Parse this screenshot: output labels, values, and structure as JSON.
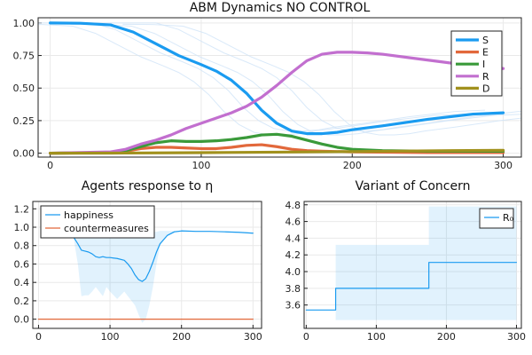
{
  "chart_data": [
    {
      "type": "line",
      "title": "ABM Dynamics NO CONTROL",
      "xlim": [
        -8,
        312
      ],
      "ylim": [
        -0.03,
        1.04
      ],
      "xticks": [
        "0",
        "100",
        "200",
        "300"
      ],
      "yticks": [
        "0.00",
        "0.25",
        "0.50",
        "0.75",
        "1.00"
      ],
      "grid": true,
      "legend": "top-right",
      "series": [
        {
          "name": "S",
          "color": "#1a9bf0",
          "x": [
            0,
            20,
            40,
            55,
            70,
            85,
            100,
            110,
            120,
            130,
            140,
            150,
            160,
            170,
            180,
            190,
            200,
            220,
            250,
            280,
            300
          ],
          "y": [
            1.0,
            0.998,
            0.985,
            0.93,
            0.84,
            0.75,
            0.68,
            0.63,
            0.56,
            0.46,
            0.33,
            0.23,
            0.17,
            0.15,
            0.15,
            0.16,
            0.18,
            0.21,
            0.26,
            0.3,
            0.31
          ]
        },
        {
          "name": "E",
          "color": "#e2683b",
          "x": [
            0,
            40,
            50,
            60,
            70,
            80,
            90,
            100,
            110,
            120,
            130,
            140,
            150,
            160,
            170,
            180,
            200,
            250,
            300
          ],
          "y": [
            0.0,
            0.003,
            0.015,
            0.035,
            0.045,
            0.045,
            0.04,
            0.035,
            0.035,
            0.045,
            0.06,
            0.065,
            0.05,
            0.03,
            0.02,
            0.015,
            0.01,
            0.005,
            0.005
          ]
        },
        {
          "name": "I",
          "color": "#3a9a3a",
          "x": [
            0,
            40,
            50,
            60,
            70,
            80,
            90,
            100,
            110,
            120,
            130,
            140,
            150,
            160,
            170,
            180,
            190,
            200,
            220,
            250,
            300
          ],
          "y": [
            0.0,
            0.005,
            0.02,
            0.05,
            0.08,
            0.095,
            0.09,
            0.09,
            0.095,
            0.105,
            0.12,
            0.14,
            0.145,
            0.13,
            0.1,
            0.07,
            0.045,
            0.03,
            0.02,
            0.015,
            0.015
          ]
        },
        {
          "name": "R",
          "color": "#c26fcf",
          "x": [
            0,
            40,
            50,
            60,
            70,
            80,
            90,
            100,
            110,
            120,
            130,
            140,
            150,
            160,
            170,
            180,
            190,
            200,
            210,
            220,
            240,
            260,
            280,
            300
          ],
          "y": [
            0.0,
            0.01,
            0.03,
            0.07,
            0.1,
            0.14,
            0.19,
            0.23,
            0.27,
            0.31,
            0.36,
            0.43,
            0.52,
            0.62,
            0.71,
            0.76,
            0.775,
            0.775,
            0.77,
            0.76,
            0.73,
            0.7,
            0.67,
            0.65
          ]
        },
        {
          "name": "D",
          "color": "#a1911d",
          "x": [
            0,
            50,
            100,
            150,
            200,
            250,
            300
          ],
          "y": [
            0.0,
            0.001,
            0.004,
            0.008,
            0.012,
            0.018,
            0.022
          ]
        }
      ]
    },
    {
      "type": "line",
      "title": "Agents response to η",
      "xlim": [
        -8,
        312
      ],
      "ylim": [
        -0.1,
        1.28
      ],
      "xticks": [
        "0",
        "100",
        "200",
        "300"
      ],
      "yticks": [
        "0.0",
        "0.2",
        "0.4",
        "0.6",
        "0.8",
        "1.0",
        "1.2"
      ],
      "grid": true,
      "legend": "top-left",
      "series": [
        {
          "name": "happiness",
          "color": "#1a9bf0",
          "x": [
            50,
            55,
            60,
            65,
            70,
            75,
            80,
            85,
            90,
            95,
            100,
            110,
            120,
            125,
            130,
            135,
            140,
            145,
            150,
            155,
            160,
            165,
            170,
            180,
            190,
            200,
            220,
            240,
            260,
            280,
            300
          ],
          "y": [
            0.88,
            0.82,
            0.75,
            0.74,
            0.73,
            0.71,
            0.68,
            0.67,
            0.68,
            0.67,
            0.67,
            0.66,
            0.64,
            0.6,
            0.55,
            0.48,
            0.43,
            0.41,
            0.44,
            0.52,
            0.62,
            0.73,
            0.82,
            0.91,
            0.95,
            0.96,
            0.955,
            0.955,
            0.95,
            0.945,
            0.935
          ],
          "band_upper": [
            0.92,
            0.95,
            0.96,
            0.96,
            0.96,
            0.96,
            0.96,
            0.96,
            0.96,
            0.96,
            0.96,
            0.96,
            0.96,
            0.96,
            0.96,
            0.95,
            0.95,
            0.95,
            0.95,
            0.95,
            0.95,
            0.95,
            0.96,
            0.96,
            0.96,
            0.96,
            0.96,
            0.955,
            0.955,
            0.95,
            0.94
          ],
          "band_lower": [
            0.84,
            0.6,
            0.25,
            0.26,
            0.26,
            0.3,
            0.35,
            0.3,
            0.25,
            0.35,
            0.3,
            0.22,
            0.3,
            0.25,
            0.2,
            0.15,
            0.05,
            -0.04,
            0.0,
            0.15,
            0.35,
            0.6,
            0.8,
            0.9,
            0.94,
            0.95,
            0.95,
            0.95,
            0.945,
            0.94,
            0.93
          ]
        },
        {
          "name": "countermeasures",
          "color": "#e2683b",
          "x": [
            0,
            300
          ],
          "y": [
            0,
            0
          ]
        }
      ]
    },
    {
      "type": "line",
      "title": "Variant of Concern",
      "xlim": [
        -3,
        307
      ],
      "ylim": [
        3.32,
        4.84
      ],
      "xticks": [
        "0",
        "100",
        "200",
        "300"
      ],
      "yticks": [
        "3.6",
        "3.8",
        "4.0",
        "4.2",
        "4.4",
        "4.6",
        "4.8"
      ],
      "grid": true,
      "legend": "top-right",
      "series": [
        {
          "name": "R₀",
          "color": "#1a9bf0",
          "x": [
            0,
            42,
            42,
            175,
            175,
            300
          ],
          "y": [
            3.54,
            3.54,
            3.8,
            3.8,
            4.11,
            4.11
          ],
          "bands": [
            {
              "x0": 42,
              "x1": 175,
              "low": 3.42,
              "high": 4.32
            },
            {
              "x0": 175,
              "x1": 300,
              "low": 3.42,
              "high": 4.78
            }
          ]
        }
      ]
    }
  ]
}
